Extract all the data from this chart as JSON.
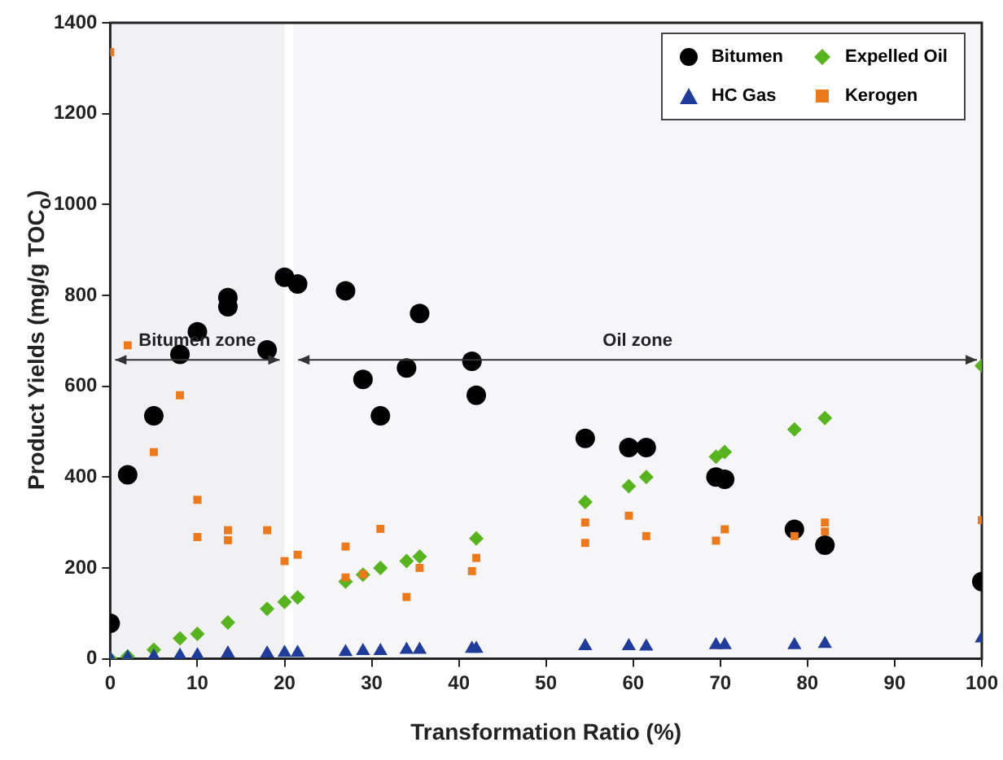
{
  "chart_data": {
    "type": "scatter",
    "xlabel": "Transformation Ratio (%)",
    "ylabel": "Product Yields  (mg/g TOC$_{o}$)",
    "xlim": [
      0,
      100
    ],
    "xticks": [
      0,
      10,
      20,
      30,
      40,
      50,
      60,
      70,
      80,
      90,
      100
    ],
    "ylim": [
      0,
      1400
    ],
    "yticks": [
      0,
      200,
      400,
      600,
      800,
      1000,
      1200,
      1400
    ],
    "grid": false,
    "legend": "top right",
    "bands": [
      {
        "axis": "x",
        "from": 0,
        "to": 20,
        "label": "Bitumen zone",
        "color": "#f1f1f4"
      },
      {
        "axis": "x",
        "from": 21,
        "to": 100,
        "label": "Oil zone",
        "color": "#f6f6f8"
      }
    ],
    "series": [
      {
        "name": "Bitumen",
        "color": "#000000",
        "marker": "circle",
        "x": [
          0,
          2,
          5,
          8,
          10,
          13.5,
          13.5,
          18,
          20,
          21.5,
          27,
          29,
          31,
          34,
          35.5,
          41.5,
          42,
          54.5,
          59.5,
          61.5,
          69.5,
          70.5,
          78.5,
          82,
          100
        ],
        "values": [
          78,
          405,
          535,
          670,
          720,
          775,
          795,
          680,
          840,
          825,
          810,
          615,
          535,
          640,
          760,
          655,
          580,
          485,
          465,
          465,
          400,
          395,
          285,
          250,
          170
        ]
      },
      {
        "name": "Expelled Oil",
        "color": "#58b41e",
        "marker": "diamond",
        "x": [
          0,
          2,
          5,
          8,
          10,
          13.5,
          18,
          20,
          21.5,
          27,
          29,
          31,
          34,
          35.5,
          42,
          54.5,
          59.5,
          61.5,
          69.5,
          70.5,
          78.5,
          82,
          100
        ],
        "values": [
          0,
          5,
          20,
          45,
          55,
          80,
          110,
          125,
          135,
          170,
          185,
          200,
          215,
          225,
          265,
          345,
          380,
          400,
          445,
          455,
          505,
          530,
          645
        ]
      },
      {
        "name": "HC Gas",
        "color": "#1f3c9a",
        "marker": "triangle",
        "x": [
          0,
          2,
          5,
          8,
          10,
          13.5,
          18,
          20,
          21.5,
          27,
          29,
          31,
          34,
          35.5,
          41.5,
          42,
          54.5,
          59.5,
          61.5,
          69.5,
          70.5,
          78.5,
          82,
          100
        ],
        "values": [
          0,
          3,
          5,
          7,
          8,
          12,
          12,
          13,
          13,
          15,
          17,
          17,
          20,
          20,
          22,
          22,
          28,
          28,
          27,
          30,
          30,
          30,
          33,
          45
        ]
      },
      {
        "name": "Kerogen",
        "color": "#ec7a1c",
        "marker": "square",
        "x": [
          0,
          2,
          5,
          8,
          10,
          10,
          13.5,
          13.5,
          18,
          20,
          21.5,
          27,
          27,
          29,
          31,
          34,
          35.5,
          41.5,
          42,
          54.5,
          54.5,
          59.5,
          61.5,
          69.5,
          70.5,
          78.5,
          82,
          82,
          100
        ],
        "values": [
          1335,
          690,
          455,
          580,
          350,
          268,
          283,
          261,
          283,
          215,
          229,
          247,
          179,
          186,
          286,
          136,
          200,
          193,
          222,
          300,
          255,
          315,
          270,
          260,
          285,
          270,
          300,
          280,
          305
        ]
      }
    ]
  }
}
